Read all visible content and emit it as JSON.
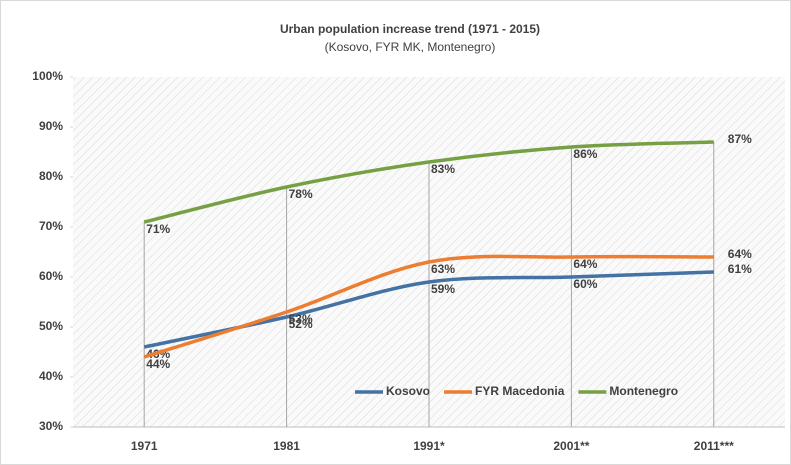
{
  "chart_data": {
    "type": "line",
    "title": "Urban population increase trend (1971 - 2015)",
    "subtitle": "(Kosovo,  FYR MK, Montenegro)",
    "categories": [
      "1971",
      "1981",
      "1991*",
      "2001**",
      "2011***"
    ],
    "series": [
      {
        "name": "Kosovo",
        "color": "#4472a4",
        "values": [
          46,
          52,
          59,
          60,
          61
        ],
        "value_labels": [
          "46%",
          "52%",
          "59%",
          "60%",
          "61%"
        ]
      },
      {
        "name": "FYR Macedonia",
        "color": "#ed7d31",
        "values": [
          44,
          53,
          63,
          64,
          64
        ],
        "value_labels": [
          "44%",
          "53%",
          "63%",
          "64%",
          "64%"
        ]
      },
      {
        "name": "Montenegro",
        "color": "#77a045",
        "values": [
          71,
          78,
          83,
          86,
          87
        ],
        "value_labels": [
          "71%",
          "78%",
          "83%",
          "86%",
          "87%"
        ]
      }
    ],
    "ylim": [
      30,
      100
    ],
    "yticks": [
      {
        "value": 30,
        "label": "30%"
      },
      {
        "value": 40,
        "label": "40%"
      },
      {
        "value": 50,
        "label": "50%"
      },
      {
        "value": 60,
        "label": "60%"
      },
      {
        "value": 70,
        "label": "70%"
      },
      {
        "value": 80,
        "label": "80%"
      },
      {
        "value": 90,
        "label": "90%"
      },
      {
        "value": 100,
        "label": "100%"
      }
    ],
    "grid": "vertical",
    "legend": "bottom-right"
  }
}
